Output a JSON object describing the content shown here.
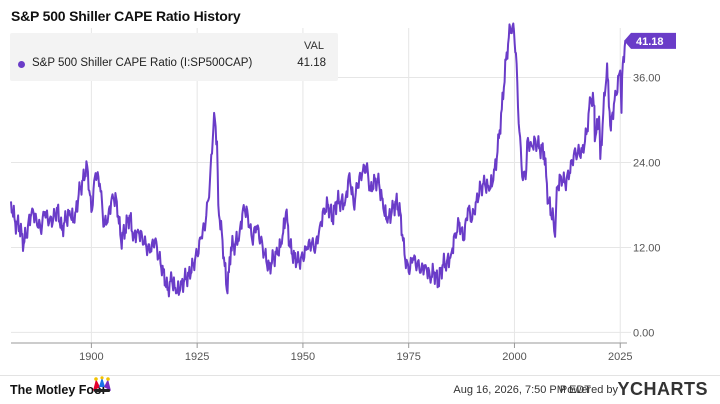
{
  "header": {
    "title": "S&P 500 Shiller CAPE Ratio History"
  },
  "legend": {
    "column_header": "VAL",
    "series_name": "S&P 500 Shiller CAPE Ratio (I:SP500CAP)",
    "series_value": "41.18"
  },
  "footer": {
    "timestamp": "Aug 16, 2026, 7:50 PM EDT",
    "powered_by": "Powered by",
    "provider_logo_text": "YCHARTS",
    "publisher_logo_text": "The Motley Fool"
  },
  "colors": {
    "series": "#6a3cc8",
    "grid": "#e6e6e6",
    "axis_text": "#555555",
    "badge": "#6a3cc8"
  },
  "chart_data": {
    "type": "line",
    "title": "S&P 500 Shiller CAPE Ratio History",
    "xlabel": "",
    "ylabel": "",
    "xlim": [
      1881,
      2026.6
    ],
    "ylim": [
      -1.5,
      43
    ],
    "x_ticks": [
      1900,
      1925,
      1950,
      1975,
      2000,
      2025
    ],
    "y_ticks": [
      0,
      12,
      24,
      36
    ],
    "y_tick_labels": [
      "0.00",
      "12.00",
      "24.00",
      "36.00"
    ],
    "grid": true,
    "legend_position": "top-left",
    "last_value_label": "41.18",
    "series": [
      {
        "name": "S&P 500 Shiller CAPE Ratio (I:SP500CAP)",
        "x": [
          1881,
          1882,
          1883,
          1884,
          1885,
          1886,
          1887,
          1888,
          1889,
          1890,
          1891,
          1892,
          1893,
          1894,
          1895,
          1896,
          1897,
          1898,
          1899,
          1900,
          1901,
          1902,
          1903,
          1904,
          1905,
          1906,
          1907,
          1908,
          1909,
          1910,
          1911,
          1912,
          1913,
          1914,
          1915,
          1916,
          1917,
          1918,
          1919,
          1920,
          1921,
          1922,
          1923,
          1924,
          1925,
          1926,
          1927,
          1928,
          1929,
          1929.7,
          1930,
          1931,
          1932,
          1932.5,
          1933,
          1934,
          1935,
          1936,
          1937,
          1938,
          1939,
          1940,
          1941,
          1942,
          1943,
          1944,
          1945,
          1946,
          1947,
          1948,
          1949,
          1950,
          1951,
          1952,
          1953,
          1954,
          1955,
          1956,
          1957,
          1958,
          1959,
          1960,
          1961,
          1962,
          1963,
          1964,
          1965,
          1966,
          1967,
          1968,
          1969,
          1970,
          1971,
          1972,
          1973,
          1974,
          1975,
          1976,
          1977,
          1978,
          1979,
          1980,
          1981,
          1982,
          1983,
          1984,
          1985,
          1986,
          1987,
          1988,
          1989,
          1990,
          1991,
          1992,
          1993,
          1994,
          1995,
          1996,
          1997,
          1998,
          1999,
          1999.9,
          2000.5,
          2001,
          2002,
          2002.8,
          2003,
          2004,
          2005,
          2006,
          2007,
          2008,
          2009.2,
          2009.6,
          2010,
          2011,
          2012,
          2013,
          2014,
          2015,
          2016,
          2017,
          2018,
          2018.9,
          2019,
          2020,
          2020.3,
          2021,
          2021.9,
          2022,
          2022.8,
          2023,
          2024,
          2025,
          2025.3,
          2025.6,
          2026.2
        ],
        "values": [
          18.5,
          15.5,
          15.0,
          12.5,
          15.0,
          17.5,
          16.0,
          14.5,
          17.0,
          15.5,
          16.0,
          17.5,
          14.5,
          16.0,
          16.5,
          15.5,
          19.5,
          21.5,
          23.5,
          17.0,
          22.5,
          21.0,
          15.0,
          16.5,
          19.5,
          18.5,
          13.0,
          14.5,
          16.5,
          13.5,
          14.5,
          13.5,
          12.0,
          11.5,
          13.0,
          10.5,
          8.5,
          6.0,
          7.5,
          5.5,
          6.0,
          7.5,
          8.0,
          9.5,
          11.0,
          13.5,
          15.5,
          21.0,
          31.0,
          27.0,
          18.0,
          13.0,
          6.0,
          8.5,
          12.0,
          12.5,
          14.0,
          18.0,
          16.5,
          13.0,
          15.0,
          13.0,
          11.0,
          9.0,
          10.5,
          11.0,
          12.5,
          17.0,
          12.0,
          10.5,
          10.0,
          10.5,
          12.0,
          12.5,
          12.0,
          15.0,
          17.5,
          18.0,
          16.0,
          18.5,
          18.5,
          18.5,
          22.5,
          18.0,
          21.0,
          22.5,
          23.5,
          20.0,
          21.5,
          21.0,
          17.5,
          15.5,
          17.0,
          18.5,
          17.0,
          11.0,
          8.5,
          10.5,
          9.5,
          9.0,
          9.5,
          8.0,
          8.5,
          7.0,
          9.5,
          10.0,
          11.0,
          14.0,
          15.5,
          13.0,
          17.5,
          16.0,
          18.5,
          20.5,
          21.0,
          20.0,
          21.5,
          25.5,
          31.5,
          38.5,
          43.0,
          42.5,
          38.0,
          29.5,
          21.5,
          23.0,
          27.0,
          26.5,
          27.0,
          26.0,
          25.5,
          18.5,
          16.0,
          13.5,
          20.5,
          22.0,
          21.0,
          22.5,
          25.0,
          25.5,
          25.5,
          28.0,
          33.0,
          32.0,
          27.0,
          30.5,
          24.5,
          31.0,
          38.0,
          36.0,
          28.5,
          30.5,
          33.5,
          37.0,
          31.0,
          38.0,
          41.18
        ]
      }
    ]
  }
}
